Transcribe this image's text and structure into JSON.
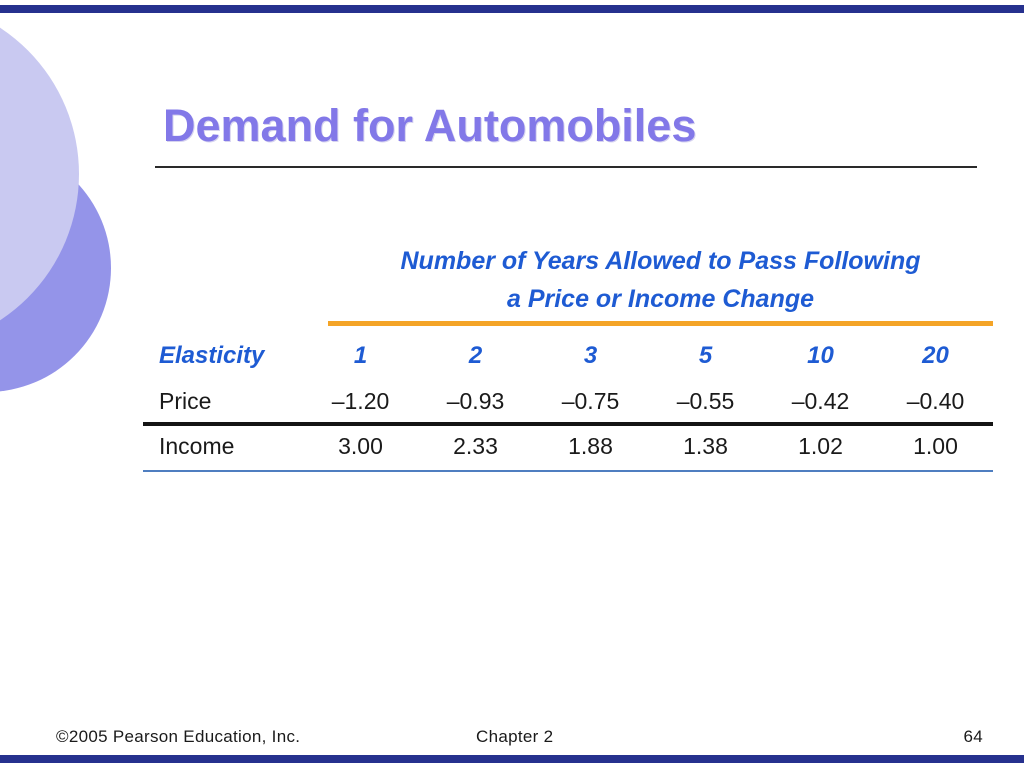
{
  "slide": {
    "title": "Demand for Automobiles",
    "footer": {
      "copyright": "©2005 Pearson Education, Inc.",
      "chapter": "Chapter 2",
      "page": "64"
    }
  },
  "chart_data": {
    "type": "table",
    "title_lines": [
      "Number of Years Allowed to Pass Following",
      "a Price or Income Change"
    ],
    "row_header": "Elasticity",
    "categories": [
      "1",
      "2",
      "3",
      "5",
      "10",
      "20"
    ],
    "series": [
      {
        "name": "Price",
        "values": [
          "–1.20",
          "–0.93",
          "–0.75",
          "–0.55",
          "–0.42",
          "–0.40"
        ]
      },
      {
        "name": "Income",
        "values": [
          "3.00",
          "2.33",
          "1.88",
          "1.38",
          "1.02",
          "1.00"
        ]
      }
    ]
  },
  "colors": {
    "edge_bar": "#26318e",
    "title": "#8278e8",
    "table_header_blue": "#1e5bd3",
    "orange_rule": "#f4a427",
    "blue_rule": "#4f7ec0",
    "circle_light": "#c9c9f1",
    "circle_dark": "#9494e9"
  }
}
